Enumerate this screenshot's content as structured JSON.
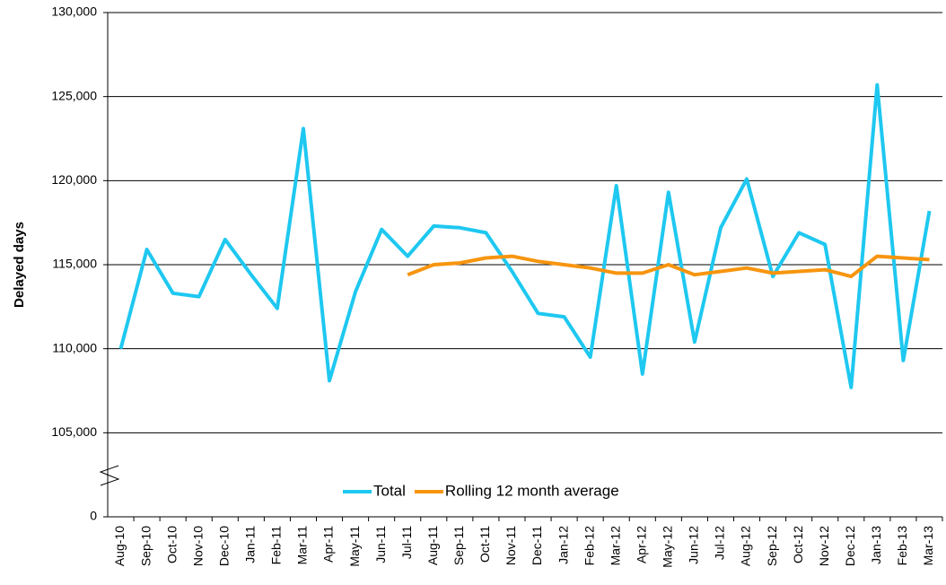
{
  "chart_data": {
    "type": "line",
    "y_label": "Delayed days",
    "categories": [
      "Aug-10",
      "Sep-10",
      "Oct-10",
      "Nov-10",
      "Dec-10",
      "Jan-11",
      "Feb-11",
      "Mar-11",
      "Apr-11",
      "May-11",
      "Jun-11",
      "Jul-11",
      "Aug-11",
      "Sep-11",
      "Oct-11",
      "Nov-11",
      "Dec-11",
      "Jan-12",
      "Feb-12",
      "Mar-12",
      "Apr-12",
      "May-12",
      "Jun-12",
      "Jul-12",
      "Aug-12",
      "Sep-12",
      "Oct-12",
      "Nov-12",
      "Dec-12",
      "Jan-13",
      "Feb-13",
      "Mar-13"
    ],
    "series": [
      {
        "name": "Total",
        "color": "#1ec8f0",
        "values": [
          110000,
          115900,
          113300,
          113100,
          116500,
          114400,
          112400,
          123100,
          108100,
          113400,
          117100,
          115500,
          117300,
          117200,
          116900,
          114600,
          112100,
          111900,
          109500,
          119700,
          108500,
          119300,
          110400,
          117200,
          120100,
          114300,
          116900,
          116200,
          107700,
          125700,
          109300,
          118200
        ]
      },
      {
        "name": "Rolling 12 month average",
        "color": "#f7950f",
        "values": [
          null,
          null,
          null,
          null,
          null,
          null,
          null,
          null,
          null,
          null,
          null,
          114400,
          115000,
          115100,
          115400,
          115500,
          115200,
          115000,
          114800,
          114500,
          114500,
          115000,
          114400,
          114600,
          114800,
          114500,
          114600,
          114700,
          114300,
          115500,
          115400,
          115300
        ]
      }
    ],
    "ylim": [
      0,
      130000
    ],
    "y_break": [
      0,
      100000
    ],
    "yticks": [
      0,
      {
        "value": 105000,
        "label": "105,000"
      },
      {
        "value": 110000,
        "label": "110,000"
      },
      {
        "value": 115000,
        "label": "115,000"
      },
      {
        "value": 120000,
        "label": "120,000"
      },
      {
        "value": 125000,
        "label": "125,000"
      },
      {
        "value": 130000,
        "label": "130,000"
      }
    ],
    "grid": true,
    "legend": "bottom"
  }
}
